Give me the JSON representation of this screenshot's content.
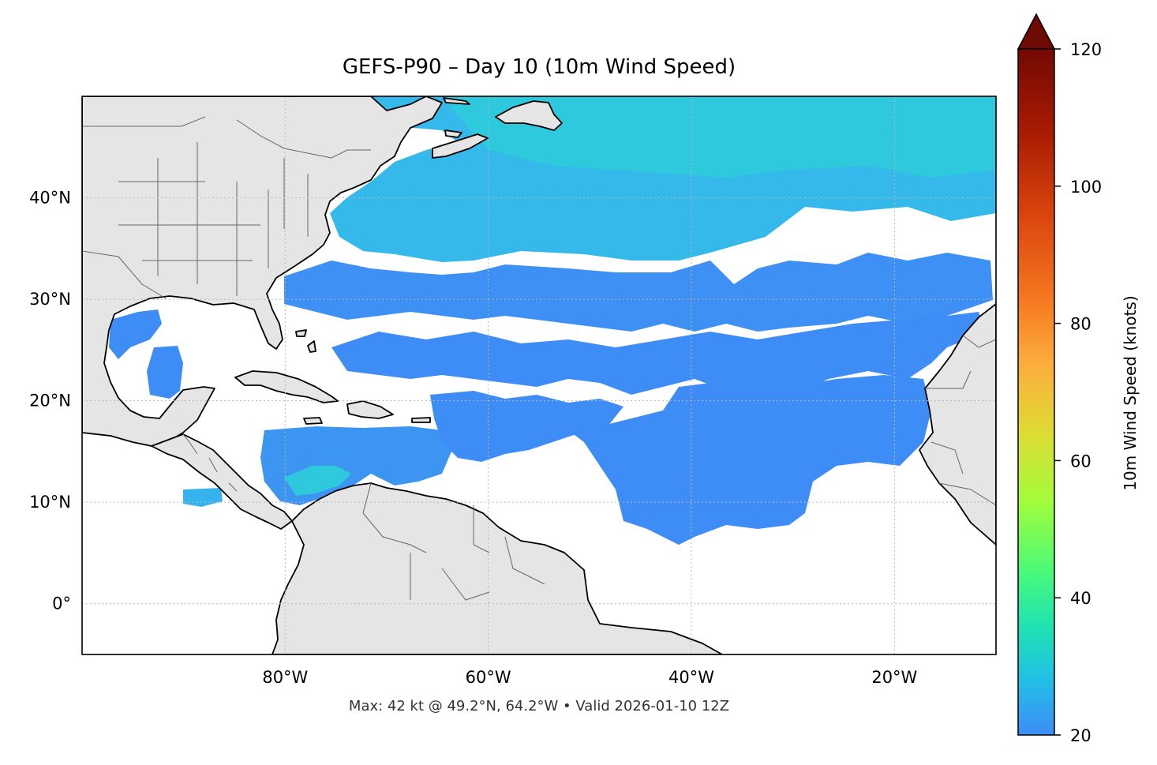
{
  "title": "GEFS-P90 – Day 10 (10m Wind Speed)",
  "footer": "Max: 42 kt @ 49.2°N, 64.2°W • Valid 2026-01-10 12Z",
  "map": {
    "lat_range": [
      -5,
      50
    ],
    "lon_range": [
      -100,
      -10
    ],
    "lat_ticks": [
      {
        "value": 40,
        "label": "40°N"
      },
      {
        "value": 30,
        "label": "30°N"
      },
      {
        "value": 20,
        "label": "20°N"
      },
      {
        "value": 10,
        "label": "10°N"
      },
      {
        "value": 0,
        "label": "0°"
      }
    ],
    "lon_ticks": [
      {
        "value": -80,
        "label": "80°W"
      },
      {
        "value": -60,
        "label": "60°W"
      },
      {
        "value": -40,
        "label": "40°W"
      },
      {
        "value": -20,
        "label": "20°W"
      }
    ],
    "gridlines": true,
    "land_color": "#e5e5e5",
    "coast_color": "#000000",
    "border_color": "#666666",
    "max_wind": {
      "value_kt": 42,
      "lat": 49.2,
      "lon": -64.2
    }
  },
  "colorbar": {
    "label": "10m Wind Speed (knots)",
    "min": 20,
    "max": 120,
    "extend": "max",
    "extend_color": "#6e0a02",
    "ticks": [
      {
        "value": 20,
        "label": "20"
      },
      {
        "value": 40,
        "label": "40"
      },
      {
        "value": 60,
        "label": "60"
      },
      {
        "value": 80,
        "label": "80"
      },
      {
        "value": 100,
        "label": "100"
      },
      {
        "value": 120,
        "label": "120"
      }
    ],
    "colormap": "turbo",
    "color_stops": [
      {
        "value": 20,
        "color": "#3e8cf6"
      },
      {
        "value": 28,
        "color": "#21bfe6"
      },
      {
        "value": 36,
        "color": "#1fe3b0"
      },
      {
        "value": 44,
        "color": "#4cfa78"
      },
      {
        "value": 54,
        "color": "#a2fc3c"
      },
      {
        "value": 64,
        "color": "#dedb34"
      },
      {
        "value": 74,
        "color": "#fcae3d"
      },
      {
        "value": 84,
        "color": "#f5751f"
      },
      {
        "value": 96,
        "color": "#d8440d"
      },
      {
        "value": 108,
        "color": "#a81b03"
      },
      {
        "value": 120,
        "color": "#730903"
      }
    ]
  }
}
